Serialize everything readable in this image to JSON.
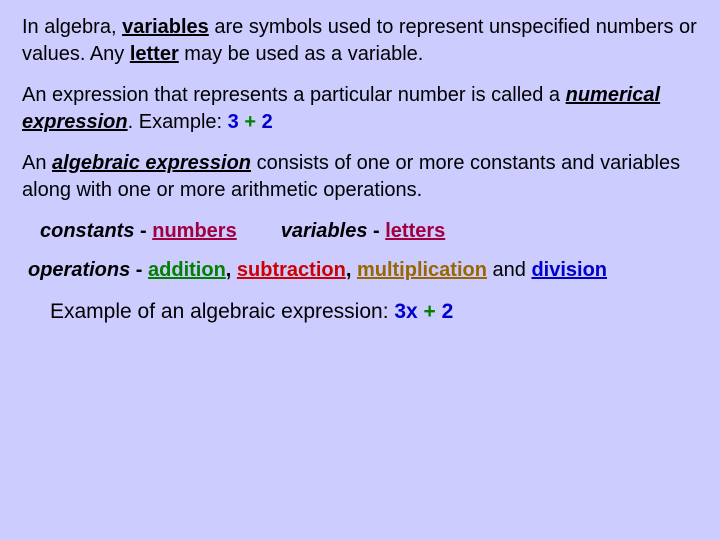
{
  "colors": {
    "background": "#ccccff",
    "text": "#000000",
    "blue": "#0000cc",
    "green": "#008000",
    "crimson": "#a00040",
    "red": "#cc0000",
    "brown": "#996600"
  },
  "typography": {
    "font_family": "Comic Sans MS",
    "base_fontsize": 20
  },
  "p1": {
    "t1": "In algebra, ",
    "variables": "variables",
    "t2": " are symbols used to represent unspecified numbers or values.  Any ",
    "letter": "letter",
    "t3": " may be used as a variable."
  },
  "p2": {
    "t1": "An expression that represents a particular number is called a ",
    "numexpr": "numerical expression",
    "t2": ".   Example:   ",
    "three": "3",
    "plus": " + ",
    "two": "2"
  },
  "p3": {
    "t1": "An ",
    "algexpr": "algebraic expression",
    "t2": " consists of one or more constants and variables along with one or more arithmetic operations."
  },
  "defs": {
    "constants": "constants",
    "dash": " - ",
    "numbers": "numbers",
    "variables": "variables",
    "letters": "letters"
  },
  "ops": {
    "operations": "operations",
    "dash": " - ",
    "addition": "addition",
    "comma": ",  ",
    "subtraction": "subtraction",
    "multiplication": "multiplication",
    "and": "  and ",
    "division": "division"
  },
  "ex": {
    "label": "Example of an algebraic expression: ",
    "threex": "3x",
    "plus": " + ",
    "two": "2"
  }
}
